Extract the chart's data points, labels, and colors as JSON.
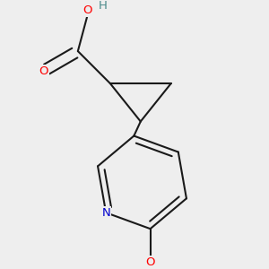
{
  "background_color": "#eeeeee",
  "bond_color": "#1a1a1a",
  "bond_width": 1.5,
  "atom_colors": {
    "O": "#ff0000",
    "N": "#0000cd",
    "H": "#4a8a8a",
    "C": "#1a1a1a"
  },
  "font_size_atom": 9.5
}
